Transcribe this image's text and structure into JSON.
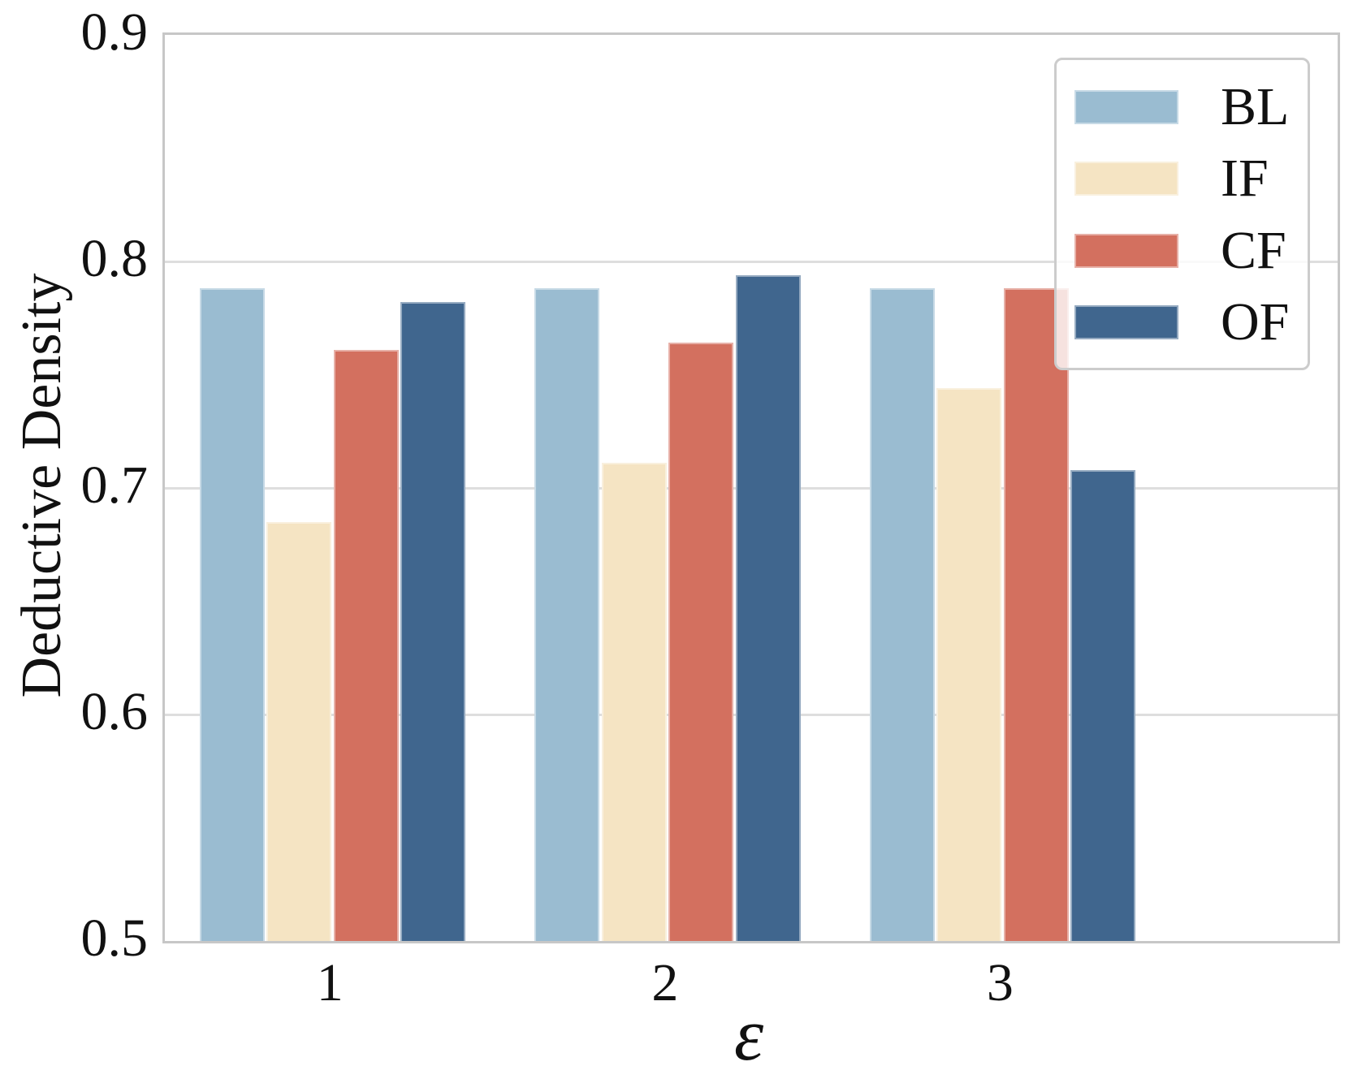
{
  "chart_data": {
    "type": "bar",
    "title": "",
    "ylabel": "Deductive Density",
    "xlabel": "ε",
    "categories": [
      "1",
      "2",
      "3"
    ],
    "x_values": [
      1,
      2,
      3
    ],
    "series": [
      {
        "name": "BL",
        "color": "#9abcd1",
        "values": [
          0.788,
          0.788,
          0.788
        ]
      },
      {
        "name": "IF",
        "color": "#f5e4c3",
        "values": [
          0.685,
          0.711,
          0.744
        ]
      },
      {
        "name": "CF",
        "color": "#d3705f",
        "values": [
          0.761,
          0.764,
          0.788
        ]
      },
      {
        "name": "OF",
        "color": "#40668e",
        "values": [
          0.782,
          0.794,
          0.708
        ]
      }
    ],
    "ylim": [
      0.5,
      0.9
    ],
    "xlim": [
      0.5,
      4.0
    ],
    "yticks": [
      0.5,
      0.6,
      0.7,
      0.8,
      0.9
    ],
    "ytick_labels": [
      "0.5",
      "0.6",
      "0.7",
      "0.8",
      "0.9"
    ],
    "grid": "horizontal",
    "legend": {
      "position": "upper right",
      "labels": [
        "BL",
        "IF",
        "CF",
        "OF"
      ]
    },
    "colors": {
      "spine": "#c7c7c7",
      "gridline": "#dedede",
      "text": "#111111",
      "legend_background": "rgba(255,255,255,0.8)",
      "legend_border": "#cccccc"
    }
  }
}
